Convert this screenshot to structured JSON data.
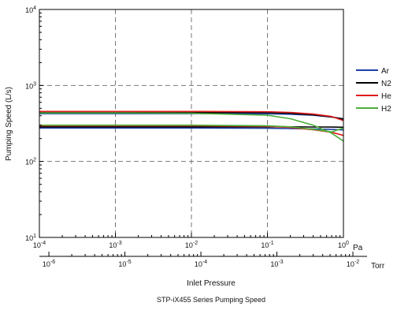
{
  "chart_data": {
    "type": "line",
    "title": "STP-iX455 Series Pumping Speed",
    "xlabel": "Inlet Pressure",
    "ylabel": "Pumping Speed (L/s)",
    "x_scale": "log",
    "y_scale": "log",
    "xlim_pa": [
      0.0001,
      1
    ],
    "ylim": [
      10,
      10000
    ],
    "x_unit_primary": "Pa",
    "x_unit_secondary": "Torr",
    "grid": true,
    "legend_position": "right",
    "y_ticks": [
      {
        "value": 10,
        "base": "10",
        "exp": "1"
      },
      {
        "value": 100,
        "base": "10",
        "exp": "2"
      },
      {
        "value": 1000,
        "base": "10",
        "exp": "3"
      },
      {
        "value": 10000,
        "base": "10",
        "exp": "4"
      }
    ],
    "x_ticks_pa": [
      {
        "value": 0.0001,
        "base": "10",
        "exp": "-4"
      },
      {
        "value": 0.001,
        "base": "10",
        "exp": "-3"
      },
      {
        "value": 0.01,
        "base": "10",
        "exp": "-2"
      },
      {
        "value": 0.1,
        "base": "10",
        "exp": "-1"
      },
      {
        "value": 1,
        "base": "10",
        "exp": "0"
      }
    ],
    "x_ticks_torr": [
      {
        "value": 1e-06,
        "base": "10",
        "exp": "-6"
      },
      {
        "value": 1e-05,
        "base": "10",
        "exp": "-5"
      },
      {
        "value": 0.0001,
        "base": "10",
        "exp": "-4"
      },
      {
        "value": 0.001,
        "base": "10",
        "exp": "-3"
      },
      {
        "value": 0.01,
        "base": "10",
        "exp": "-2"
      }
    ],
    "series": [
      {
        "name": "Ar",
        "color": "#1f3fa6",
        "x": [
          0.0001,
          0.001,
          0.01,
          0.1,
          0.2,
          0.4,
          0.7,
          1
        ],
        "y": [
          275,
          275,
          275,
          273,
          271,
          268,
          264,
          260
        ]
      },
      {
        "name": "Ar",
        "color": "#1f3fa6",
        "x": [
          0.0001,
          0.001,
          0.01,
          0.1,
          0.2,
          0.4,
          0.7,
          1
        ],
        "y": [
          425,
          425,
          425,
          423,
          418,
          405,
          385,
          365
        ]
      },
      {
        "name": "N2",
        "color": "#000000",
        "x": [
          0.0001,
          0.001,
          0.01,
          0.1,
          0.2,
          0.4,
          0.7,
          1
        ],
        "y": [
          285,
          285,
          285,
          285,
          285,
          284,
          283,
          282
        ]
      },
      {
        "name": "N2",
        "color": "#000000",
        "x": [
          0.0001,
          0.001,
          0.01,
          0.1,
          0.2,
          0.4,
          0.7,
          1
        ],
        "y": [
          440,
          440,
          440,
          440,
          430,
          410,
          385,
          360
        ]
      },
      {
        "name": "He",
        "color": "#e01b1b",
        "x": [
          0.0001,
          0.001,
          0.01,
          0.1,
          0.2,
          0.4,
          0.7,
          1
        ],
        "y": [
          455,
          455,
          455,
          450,
          442,
          420,
          390,
          345
        ]
      },
      {
        "name": "He",
        "color": "#e01b1b",
        "x": [
          0.0001,
          0.001,
          0.01,
          0.1,
          0.2,
          0.4,
          0.7,
          1
        ],
        "y": [
          295,
          295,
          295,
          290,
          280,
          262,
          242,
          220
        ]
      },
      {
        "name": "H2",
        "color": "#4caf3a",
        "x": [
          0.0001,
          0.001,
          0.01,
          0.1,
          0.2,
          0.4,
          0.7,
          1
        ],
        "y": [
          300,
          300,
          300,
          295,
          285,
          265,
          245,
          275
        ]
      },
      {
        "name": "H2",
        "color": "#4caf3a",
        "x": [
          0.0001,
          0.001,
          0.01,
          0.1,
          0.2,
          0.4,
          0.7,
          1
        ],
        "y": [
          435,
          435,
          430,
          405,
          365,
          300,
          235,
          185
        ]
      }
    ],
    "legend": [
      {
        "label": "Ar",
        "color": "#1f3fa6"
      },
      {
        "label": "N2",
        "color": "#000000"
      },
      {
        "label": "He",
        "color": "#e01b1b"
      },
      {
        "label": "H2",
        "color": "#4caf3a"
      }
    ]
  }
}
